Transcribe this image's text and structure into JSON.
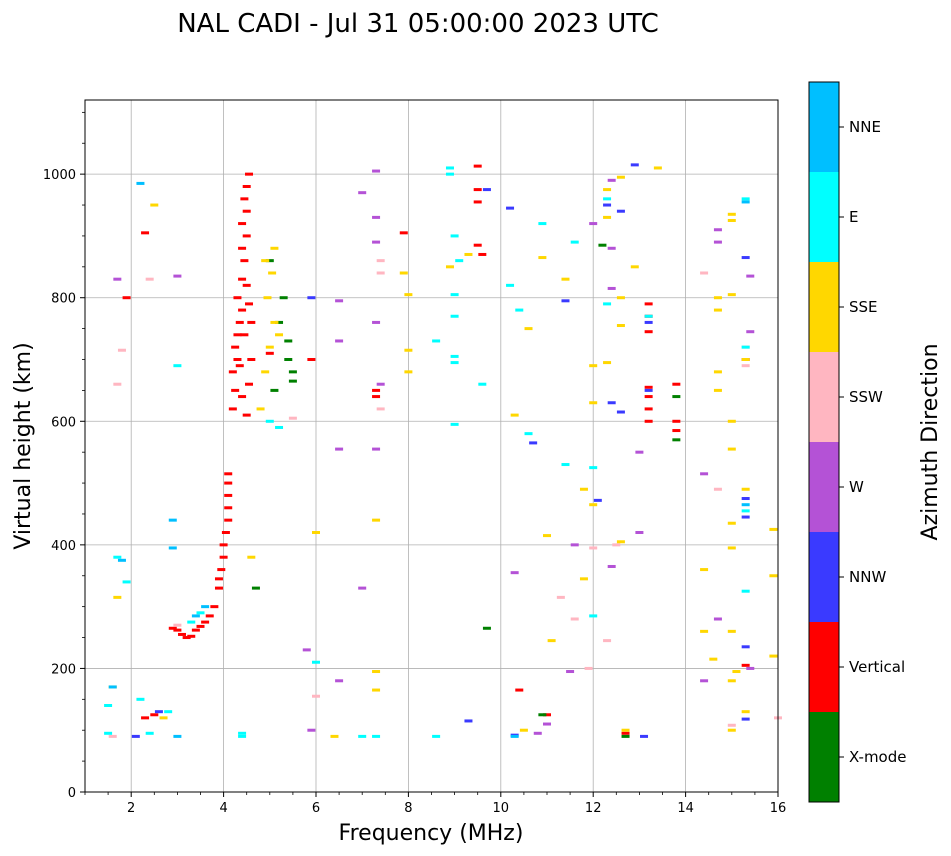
{
  "chart_data": {
    "type": "scatter",
    "title": "NAL CADI - Jul 31 05:00:00 2023 UTC",
    "xlabel": "Frequency (MHz)",
    "ylabel": "Virtual height (km)",
    "xlim": [
      1,
      16
    ],
    "ylim": [
      0,
      1120
    ],
    "xticks": [
      2,
      4,
      6,
      8,
      10,
      12,
      14,
      16
    ],
    "yticks": [
      0,
      200,
      400,
      600,
      800,
      1000
    ],
    "grid": true,
    "colorbar": {
      "label": "Azimuth Direction",
      "categories": [
        "X-mode",
        "Vertical",
        "NNW",
        "W",
        "SSW",
        "SSE",
        "E",
        "NNE"
      ],
      "colors": [
        "#008000",
        "#ff0000",
        "#3a3aff",
        "#b452d6",
        "#ffb6c1",
        "#ffd700",
        "#00ffff",
        "#00bfff"
      ]
    },
    "series": [
      {
        "name": "Vertical",
        "points": [
          [
            2.3,
            120
          ],
          [
            2.5,
            125
          ],
          [
            2.9,
            265
          ],
          [
            3.0,
            262
          ],
          [
            3.1,
            255
          ],
          [
            3.2,
            250
          ],
          [
            3.3,
            252
          ],
          [
            3.4,
            262
          ],
          [
            3.5,
            268
          ],
          [
            3.6,
            275
          ],
          [
            3.7,
            285
          ],
          [
            3.8,
            300
          ],
          [
            3.9,
            330
          ],
          [
            3.9,
            345
          ],
          [
            3.95,
            360
          ],
          [
            4.0,
            380
          ],
          [
            4.0,
            400
          ],
          [
            4.05,
            420
          ],
          [
            4.1,
            440
          ],
          [
            4.1,
            460
          ],
          [
            4.1,
            480
          ],
          [
            4.1,
            500
          ],
          [
            4.1,
            515
          ],
          [
            4.2,
            620
          ],
          [
            4.25,
            650
          ],
          [
            4.2,
            680
          ],
          [
            4.3,
            700
          ],
          [
            4.25,
            720
          ],
          [
            4.3,
            740
          ],
          [
            4.35,
            760
          ],
          [
            4.4,
            780
          ],
          [
            4.3,
            800
          ],
          [
            4.4,
            830
          ],
          [
            4.45,
            860
          ],
          [
            4.4,
            880
          ],
          [
            4.5,
            900
          ],
          [
            4.4,
            920
          ],
          [
            4.5,
            940
          ],
          [
            4.45,
            960
          ],
          [
            4.5,
            980
          ],
          [
            4.55,
            1000
          ],
          [
            4.4,
            640
          ],
          [
            4.6,
            700
          ],
          [
            4.6,
            760
          ],
          [
            4.5,
            820
          ],
          [
            4.35,
            690
          ],
          [
            4.45,
            740
          ],
          [
            4.55,
            790
          ],
          [
            4.55,
            660
          ],
          [
            4.5,
            610
          ],
          [
            5.0,
            710
          ],
          [
            5.9,
            700
          ],
          [
            7.3,
            650
          ],
          [
            7.3,
            640
          ],
          [
            9.5,
            1013
          ],
          [
            9.5,
            975
          ],
          [
            9.5,
            955
          ],
          [
            9.5,
            885
          ],
          [
            9.6,
            870
          ],
          [
            10.4,
            165
          ],
          [
            11.0,
            125
          ],
          [
            12.7,
            95
          ],
          [
            13.2,
            600
          ],
          [
            13.2,
            620
          ],
          [
            13.2,
            640
          ],
          [
            13.2,
            655
          ],
          [
            13.2,
            745
          ],
          [
            13.2,
            770
          ],
          [
            13.2,
            790
          ],
          [
            13.8,
            660
          ],
          [
            13.8,
            600
          ],
          [
            13.8,
            585
          ],
          [
            15.3,
            700
          ],
          [
            15.3,
            205
          ],
          [
            1.9,
            800
          ],
          [
            2.3,
            905
          ],
          [
            7.9,
            905
          ]
        ]
      },
      {
        "name": "X-mode",
        "points": [
          [
            4.7,
            330
          ],
          [
            5.2,
            760
          ],
          [
            5.4,
            700
          ],
          [
            5.5,
            680
          ],
          [
            5.4,
            730
          ],
          [
            5.3,
            800
          ],
          [
            5.0,
            860
          ],
          [
            5.1,
            650
          ],
          [
            9.7,
            265
          ],
          [
            10.9,
            125
          ],
          [
            12.7,
            90
          ],
          [
            13.8,
            570
          ],
          [
            13.8,
            640
          ],
          [
            12.2,
            885
          ],
          [
            5.5,
            665
          ]
        ]
      },
      {
        "name": "NNW",
        "points": [
          [
            2.1,
            90
          ],
          [
            2.6,
            130
          ],
          [
            5.9,
            800
          ],
          [
            9.3,
            115
          ],
          [
            9.7,
            975
          ],
          [
            10.2,
            945
          ],
          [
            10.3,
            92
          ],
          [
            10.7,
            565
          ],
          [
            11.4,
            795
          ],
          [
            12.3,
            950
          ],
          [
            12.4,
            630
          ],
          [
            12.6,
            615
          ],
          [
            12.6,
            940
          ],
          [
            12.9,
            1015
          ],
          [
            13.1,
            90
          ],
          [
            13.2,
            760
          ],
          [
            13.2,
            650
          ],
          [
            15.3,
            865
          ],
          [
            15.3,
            475
          ],
          [
            15.3,
            445
          ],
          [
            15.3,
            235
          ],
          [
            15.3,
            118
          ],
          [
            12.1,
            472
          ]
        ]
      },
      {
        "name": "W",
        "points": [
          [
            1.7,
            830
          ],
          [
            3.0,
            835
          ],
          [
            5.9,
            100
          ],
          [
            5.8,
            230
          ],
          [
            6.5,
            795
          ],
          [
            6.5,
            730
          ],
          [
            6.5,
            555
          ],
          [
            6.5,
            180
          ],
          [
            7.0,
            970
          ],
          [
            7.0,
            330
          ],
          [
            7.3,
            1005
          ],
          [
            7.3,
            930
          ],
          [
            7.3,
            890
          ],
          [
            7.3,
            760
          ],
          [
            7.4,
            660
          ],
          [
            7.3,
            555
          ],
          [
            10.3,
            355
          ],
          [
            10.8,
            95
          ],
          [
            11.0,
            110
          ],
          [
            11.5,
            195
          ],
          [
            11.6,
            400
          ],
          [
            12.0,
            920
          ],
          [
            12.4,
            990
          ],
          [
            12.4,
            880
          ],
          [
            12.4,
            815
          ],
          [
            12.4,
            365
          ],
          [
            13.0,
            420
          ],
          [
            13.0,
            550
          ],
          [
            14.4,
            515
          ],
          [
            14.7,
            910
          ],
          [
            14.7,
            890
          ],
          [
            14.7,
            280
          ],
          [
            15.4,
            835
          ],
          [
            15.4,
            745
          ],
          [
            15.4,
            200
          ],
          [
            15.3,
            700
          ],
          [
            14.4,
            180
          ]
        ]
      },
      {
        "name": "SSW",
        "points": [
          [
            1.6,
            90
          ],
          [
            1.8,
            715
          ],
          [
            1.7,
            660
          ],
          [
            2.4,
            830
          ],
          [
            3.0,
            270
          ],
          [
            5.5,
            605
          ],
          [
            6.0,
            155
          ],
          [
            7.4,
            860
          ],
          [
            7.4,
            840
          ],
          [
            7.4,
            620
          ],
          [
            11.3,
            315
          ],
          [
            11.6,
            280
          ],
          [
            11.9,
            200
          ],
          [
            12.0,
            395
          ],
          [
            12.3,
            245
          ],
          [
            12.5,
            400
          ],
          [
            14.4,
            840
          ],
          [
            14.7,
            490
          ],
          [
            15.3,
            720
          ],
          [
            15.3,
            690
          ],
          [
            16.0,
            120
          ],
          [
            15.0,
            108
          ]
        ]
      },
      {
        "name": "SSE",
        "points": [
          [
            1.6,
            170
          ],
          [
            1.7,
            315
          ],
          [
            2.5,
            950
          ],
          [
            2.7,
            120
          ],
          [
            4.6,
            380
          ],
          [
            4.8,
            620
          ],
          [
            4.9,
            680
          ],
          [
            5.0,
            720
          ],
          [
            5.1,
            760
          ],
          [
            4.95,
            800
          ],
          [
            5.05,
            840
          ],
          [
            4.9,
            860
          ],
          [
            5.2,
            740
          ],
          [
            5.1,
            880
          ],
          [
            6.0,
            420
          ],
          [
            6.4,
            90
          ],
          [
            7.3,
            440
          ],
          [
            7.3,
            165
          ],
          [
            7.3,
            195
          ],
          [
            7.9,
            840
          ],
          [
            8.0,
            680
          ],
          [
            8.0,
            715
          ],
          [
            8.0,
            805
          ],
          [
            8.9,
            850
          ],
          [
            9.3,
            870
          ],
          [
            10.3,
            610
          ],
          [
            10.5,
            100
          ],
          [
            10.6,
            750
          ],
          [
            10.9,
            865
          ],
          [
            11.0,
            415
          ],
          [
            11.1,
            245
          ],
          [
            11.4,
            830
          ],
          [
            11.8,
            345
          ],
          [
            11.8,
            490
          ],
          [
            12.0,
            690
          ],
          [
            12.0,
            630
          ],
          [
            12.0,
            465
          ],
          [
            12.3,
            695
          ],
          [
            12.3,
            975
          ],
          [
            12.3,
            930
          ],
          [
            12.6,
            995
          ],
          [
            12.6,
            800
          ],
          [
            12.6,
            755
          ],
          [
            12.6,
            405
          ],
          [
            12.7,
            100
          ],
          [
            12.9,
            850
          ],
          [
            13.4,
            1010
          ],
          [
            14.4,
            260
          ],
          [
            14.4,
            360
          ],
          [
            14.6,
            215
          ],
          [
            14.7,
            680
          ],
          [
            14.7,
            650
          ],
          [
            14.7,
            780
          ],
          [
            14.7,
            800
          ],
          [
            15.0,
            935
          ],
          [
            15.0,
            925
          ],
          [
            15.0,
            805
          ],
          [
            15.0,
            600
          ],
          [
            15.0,
            555
          ],
          [
            15.0,
            435
          ],
          [
            15.0,
            395
          ],
          [
            15.0,
            260
          ],
          [
            15.0,
            180
          ],
          [
            15.0,
            100
          ],
          [
            15.3,
            490
          ],
          [
            15.3,
            130
          ],
          [
            15.3,
            700
          ],
          [
            15.9,
            425
          ],
          [
            15.9,
            350
          ],
          [
            15.9,
            220
          ],
          [
            15.1,
            195
          ]
        ]
      },
      {
        "name": "E",
        "points": [
          [
            1.5,
            140
          ],
          [
            1.5,
            95
          ],
          [
            1.7,
            380
          ],
          [
            1.9,
            340
          ],
          [
            2.2,
            150
          ],
          [
            2.4,
            95
          ],
          [
            2.8,
            130
          ],
          [
            3.0,
            690
          ],
          [
            3.5,
            290
          ],
          [
            3.3,
            275
          ],
          [
            4.4,
            95
          ],
          [
            4.4,
            90
          ],
          [
            5.0,
            600
          ],
          [
            5.2,
            590
          ],
          [
            6.0,
            210
          ],
          [
            7.0,
            90
          ],
          [
            7.3,
            90
          ],
          [
            8.6,
            730
          ],
          [
            8.6,
            90
          ],
          [
            8.9,
            1010
          ],
          [
            8.9,
            1000
          ],
          [
            9.0,
            900
          ],
          [
            9.0,
            805
          ],
          [
            9.0,
            770
          ],
          [
            9.0,
            705
          ],
          [
            9.0,
            695
          ],
          [
            9.1,
            860
          ],
          [
            9.0,
            595
          ],
          [
            9.6,
            660
          ],
          [
            10.2,
            820
          ],
          [
            10.4,
            780
          ],
          [
            10.6,
            580
          ],
          [
            10.9,
            920
          ],
          [
            11.4,
            530
          ],
          [
            11.6,
            890
          ],
          [
            12.0,
            285
          ],
          [
            12.0,
            525
          ],
          [
            12.3,
            960
          ],
          [
            12.3,
            790
          ],
          [
            13.2,
            770
          ],
          [
            15.3,
            325
          ],
          [
            15.3,
            960
          ],
          [
            15.3,
            455
          ],
          [
            15.3,
            720
          ]
        ]
      },
      {
        "name": "NNE",
        "points": [
          [
            1.6,
            170
          ],
          [
            1.8,
            375
          ],
          [
            2.2,
            985
          ],
          [
            2.9,
            440
          ],
          [
            2.9,
            395
          ],
          [
            3.4,
            285
          ],
          [
            3.6,
            300
          ],
          [
            3.0,
            90
          ],
          [
            10.3,
            90
          ],
          [
            15.3,
            465
          ],
          [
            15.3,
            955
          ]
        ]
      }
    ]
  }
}
